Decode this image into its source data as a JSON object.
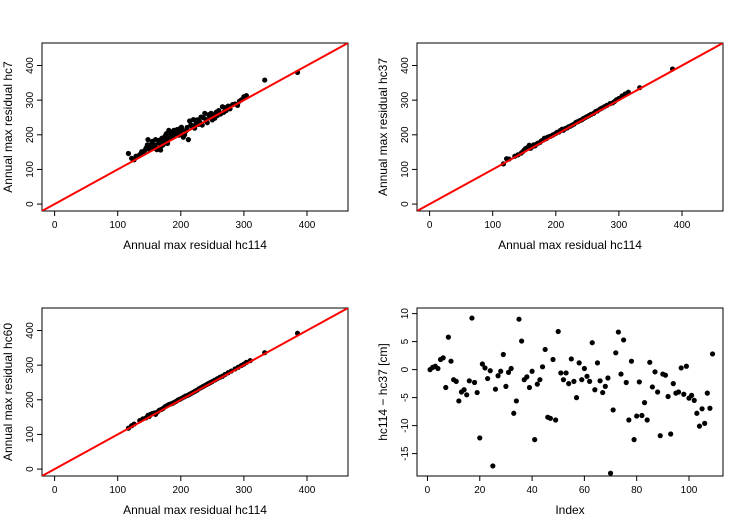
{
  "chart_data": [
    {
      "type": "scatter",
      "xlabel": "Annual max residual hc114",
      "ylabel": "Annual max residual hc7",
      "xlim": [
        -20,
        465
      ],
      "ylim": [
        -20,
        465
      ],
      "xticks": [
        "0",
        "100",
        "200",
        "300",
        "400"
      ],
      "yticks": [
        "0",
        "100",
        "200",
        "300",
        "400"
      ],
      "xtick_values": [
        0,
        100,
        200,
        300,
        400
      ],
      "ytick_values": [
        0,
        100,
        200,
        300,
        400
      ],
      "reference_line": {
        "type": "y=x",
        "color": "#ff0000"
      },
      "points": [
        [
          117,
          146
        ],
        [
          122,
          132
        ],
        [
          126,
          128
        ],
        [
          129,
          138
        ],
        [
          135,
          143
        ],
        [
          138,
          151
        ],
        [
          140,
          146
        ],
        [
          143,
          155
        ],
        [
          145,
          162
        ],
        [
          147,
          171
        ],
        [
          148,
          186
        ],
        [
          150,
          158
        ],
        [
          152,
          166
        ],
        [
          154,
          175
        ],
        [
          155,
          181
        ],
        [
          157,
          164
        ],
        [
          159,
          170
        ],
        [
          160,
          186
        ],
        [
          162,
          157
        ],
        [
          163,
          160
        ],
        [
          165,
          176
        ],
        [
          166,
          184
        ],
        [
          168,
          156
        ],
        [
          169,
          167
        ],
        [
          170,
          190
        ],
        [
          172,
          171
        ],
        [
          173,
          177
        ],
        [
          175,
          196
        ],
        [
          176,
          183
        ],
        [
          177,
          203
        ],
        [
          179,
          175
        ],
        [
          180,
          189
        ],
        [
          181,
          213
        ],
        [
          183,
          192
        ],
        [
          184,
          200
        ],
        [
          185,
          205
        ],
        [
          187,
          196
        ],
        [
          188,
          209
        ],
        [
          189,
          213
        ],
        [
          190,
          202
        ],
        [
          192,
          209
        ],
        [
          193,
          206
        ],
        [
          194,
          215
        ],
        [
          196,
          210
        ],
        [
          197,
          199
        ],
        [
          198,
          217
        ],
        [
          200,
          211
        ],
        [
          201,
          222
        ],
        [
          202,
          215
        ],
        [
          204,
          193
        ],
        [
          206,
          200
        ],
        [
          208,
          211
        ],
        [
          210,
          221
        ],
        [
          212,
          186
        ],
        [
          214,
          240
        ],
        [
          216,
          229
        ],
        [
          218,
          224
        ],
        [
          220,
          244
        ],
        [
          222,
          219
        ],
        [
          224,
          232
        ],
        [
          226,
          243
        ],
        [
          228,
          230
        ],
        [
          230,
          237
        ],
        [
          232,
          251
        ],
        [
          234,
          228
        ],
        [
          236,
          249
        ],
        [
          238,
          262
        ],
        [
          240,
          244
        ],
        [
          242,
          235
        ],
        [
          244,
          258
        ],
        [
          246,
          250
        ],
        [
          248,
          262
        ],
        [
          250,
          243
        ],
        [
          252,
          255
        ],
        [
          254,
          248
        ],
        [
          256,
          265
        ],
        [
          258,
          256
        ],
        [
          260,
          270
        ],
        [
          263,
          260
        ],
        [
          266,
          281
        ],
        [
          268,
          265
        ],
        [
          270,
          278
        ],
        [
          272,
          270
        ],
        [
          275,
          283
        ],
        [
          278,
          275
        ],
        [
          282,
          287
        ],
        [
          286,
          289
        ],
        [
          290,
          285
        ],
        [
          293,
          297
        ],
        [
          296,
          301
        ],
        [
          300,
          310
        ],
        [
          304,
          313
        ],
        [
          333,
          358
        ],
        [
          385,
          380
        ]
      ]
    },
    {
      "type": "scatter",
      "xlabel": "Annual max residual hc114",
      "ylabel": "Annual max residual hc37",
      "xlim": [
        -20,
        465
      ],
      "ylim": [
        -20,
        465
      ],
      "xticks": [
        "0",
        "100",
        "200",
        "300",
        "400"
      ],
      "yticks": [
        "0",
        "100",
        "200",
        "300",
        "400"
      ],
      "xtick_values": [
        0,
        100,
        200,
        300,
        400
      ],
      "ytick_values": [
        0,
        100,
        200,
        300,
        400
      ],
      "reference_line": {
        "type": "y=x",
        "color": "#ff0000"
      },
      "points": [
        [
          117,
          116
        ],
        [
          122,
          131
        ],
        [
          126,
          130
        ],
        [
          135,
          138
        ],
        [
          140,
          142
        ],
        [
          145,
          147
        ],
        [
          148,
          152
        ],
        [
          150,
          156
        ],
        [
          152,
          160
        ],
        [
          155,
          163
        ],
        [
          158,
          170
        ],
        [
          160,
          161
        ],
        [
          162,
          165
        ],
        [
          165,
          171
        ],
        [
          167,
          168
        ],
        [
          170,
          174
        ],
        [
          172,
          176
        ],
        [
          175,
          178
        ],
        [
          177,
          182
        ],
        [
          180,
          185
        ],
        [
          182,
          190
        ],
        [
          185,
          189
        ],
        [
          187,
          193
        ],
        [
          190,
          195
        ],
        [
          192,
          196
        ],
        [
          195,
          199
        ],
        [
          197,
          201
        ],
        [
          200,
          204
        ],
        [
          202,
          207
        ],
        [
          205,
          208
        ],
        [
          207,
          212
        ],
        [
          210,
          216
        ],
        [
          212,
          213
        ],
        [
          215,
          218
        ],
        [
          218,
          220
        ],
        [
          220,
          223
        ],
        [
          223,
          225
        ],
        [
          226,
          228
        ],
        [
          229,
          231
        ],
        [
          232,
          236
        ],
        [
          235,
          238
        ],
        [
          238,
          241
        ],
        [
          241,
          243
        ],
        [
          244,
          247
        ],
        [
          247,
          250
        ],
        [
          250,
          253
        ],
        [
          253,
          256
        ],
        [
          256,
          259
        ],
        [
          260,
          262
        ],
        [
          263,
          267
        ],
        [
          266,
          269
        ],
        [
          270,
          274
        ],
        [
          273,
          277
        ],
        [
          277,
          281
        ],
        [
          281,
          285
        ],
        [
          286,
          290
        ],
        [
          290,
          292
        ],
        [
          293,
          296
        ],
        [
          296,
          301
        ],
        [
          300,
          305
        ],
        [
          305,
          312
        ],
        [
          310,
          318
        ],
        [
          315,
          323
        ],
        [
          333,
          336
        ],
        [
          385,
          390
        ]
      ]
    },
    {
      "type": "scatter",
      "xlabel": "Annual max residual hc114",
      "ylabel": "Annual max residual hc60",
      "xlim": [
        -20,
        465
      ],
      "ylim": [
        -20,
        465
      ],
      "xticks": [
        "0",
        "100",
        "200",
        "300",
        "400"
      ],
      "yticks": [
        "0",
        "100",
        "200",
        "300",
        "400"
      ],
      "xtick_values": [
        0,
        100,
        200,
        300,
        400
      ],
      "ytick_values": [
        0,
        100,
        200,
        300,
        400
      ],
      "reference_line": {
        "type": "y=x",
        "color": "#ff0000"
      },
      "points": [
        [
          117,
          118
        ],
        [
          122,
          125
        ],
        [
          126,
          130
        ],
        [
          135,
          140
        ],
        [
          140,
          145
        ],
        [
          145,
          148
        ],
        [
          148,
          155
        ],
        [
          150,
          152
        ],
        [
          152,
          158
        ],
        [
          155,
          160
        ],
        [
          158,
          162
        ],
        [
          160,
          158
        ],
        [
          163,
          165
        ],
        [
          166,
          170
        ],
        [
          169,
          172
        ],
        [
          172,
          175
        ],
        [
          175,
          180
        ],
        [
          178,
          183
        ],
        [
          181,
          186
        ],
        [
          184,
          188
        ],
        [
          187,
          190
        ],
        [
          190,
          193
        ],
        [
          193,
          196
        ],
        [
          196,
          200
        ],
        [
          199,
          202
        ],
        [
          202,
          205
        ],
        [
          205,
          208
        ],
        [
          208,
          211
        ],
        [
          211,
          213
        ],
        [
          214,
          216
        ],
        [
          217,
          219
        ],
        [
          220,
          222
        ],
        [
          223,
          225
        ],
        [
          226,
          228
        ],
        [
          229,
          232
        ],
        [
          232,
          235
        ],
        [
          235,
          238
        ],
        [
          238,
          241
        ],
        [
          241,
          244
        ],
        [
          244,
          247
        ],
        [
          247,
          250
        ],
        [
          250,
          253
        ],
        [
          254,
          257
        ],
        [
          258,
          261
        ],
        [
          262,
          265
        ],
        [
          266,
          268
        ],
        [
          270,
          273
        ],
        [
          275,
          278
        ],
        [
          280,
          283
        ],
        [
          286,
          289
        ],
        [
          291,
          294
        ],
        [
          296,
          299
        ],
        [
          300,
          303
        ],
        [
          304,
          308
        ],
        [
          310,
          313
        ],
        [
          333,
          336
        ],
        [
          385,
          392
        ]
      ]
    },
    {
      "type": "scatter",
      "xlabel": "Index",
      "ylabel": "hc114 − hc37 [cm]",
      "xlim": [
        -4,
        113
      ],
      "ylim": [
        -19,
        11
      ],
      "xticks": [
        "0",
        "20",
        "40",
        "60",
        "80",
        "100"
      ],
      "yticks": [
        "-15",
        "-10",
        "-5",
        "0",
        "5",
        "10"
      ],
      "xtick_values": [
        0,
        20,
        40,
        60,
        80,
        100
      ],
      "ytick_values": [
        -15,
        -10,
        -5,
        0,
        5,
        10
      ],
      "x": [
        1,
        2,
        3,
        4,
        5,
        6,
        7,
        8,
        9,
        10,
        11,
        12,
        13,
        14,
        15,
        16,
        17,
        18,
        19,
        20,
        21,
        22,
        23,
        24,
        25,
        26,
        27,
        28,
        29,
        30,
        31,
        32,
        33,
        34,
        35,
        36,
        37,
        38,
        39,
        40,
        41,
        42,
        43,
        44,
        45,
        46,
        47,
        48,
        49,
        50,
        51,
        52,
        53,
        54,
        55,
        56,
        57,
        58,
        59,
        60,
        61,
        62,
        63,
        64,
        65,
        66,
        67,
        68,
        69,
        70,
        71,
        72,
        73,
        74,
        75,
        76,
        77,
        78,
        79,
        80,
        81,
        82,
        83,
        84,
        85,
        86,
        87,
        88,
        89,
        90,
        91,
        92,
        93,
        94,
        95,
        96,
        97,
        98,
        99,
        100,
        101,
        102,
        103,
        104,
        105,
        106,
        107,
        108,
        109
      ],
      "y": [
        0.0,
        0.4,
        0.6,
        0.2,
        1.8,
        2.1,
        -3.2,
        5.8,
        1.5,
        -1.8,
        -2.1,
        -5.6,
        -4.0,
        -3.6,
        -4.5,
        -2.0,
        9.2,
        -2.3,
        -4.1,
        -12.2,
        1.0,
        0.3,
        -1.6,
        -0.2,
        -17.2,
        -3.5,
        -1.1,
        -0.3,
        2.7,
        -3.0,
        -0.5,
        0.2,
        -7.8,
        -5.6,
        9.0,
        5.1,
        -1.8,
        -1.3,
        -3.2,
        -0.3,
        -12.5,
        -2.6,
        -1.8,
        0.5,
        3.6,
        -8.5,
        -8.7,
        1.8,
        -9.0,
        6.8,
        -0.6,
        -1.8,
        -0.6,
        -2.5,
        1.9,
        -2.1,
        -5.0,
        1.2,
        -1.8,
        0.2,
        -1.2,
        -2.1,
        4.8,
        -3.6,
        1.2,
        -2.0,
        -4.1,
        -3.0,
        -1.5,
        -18.5,
        -7.2,
        3.0,
        6.7,
        -0.8,
        5.3,
        -2.3,
        -9.0,
        1.5,
        -12.5,
        -8.3,
        -2.2,
        -8.2,
        -5.9,
        -9.0,
        1.3,
        -3.1,
        -0.4,
        -4.0,
        -11.8,
        -0.8,
        -1.0,
        -4.8,
        -11.5,
        -2.5,
        -4.2,
        -4.0,
        0.3,
        -4.4,
        0.6,
        -5.1,
        -4.6,
        -5.5,
        -7.8,
        -10.1,
        -7.0,
        -9.6,
        -4.2,
        -6.9,
        2.8
      ]
    }
  ]
}
